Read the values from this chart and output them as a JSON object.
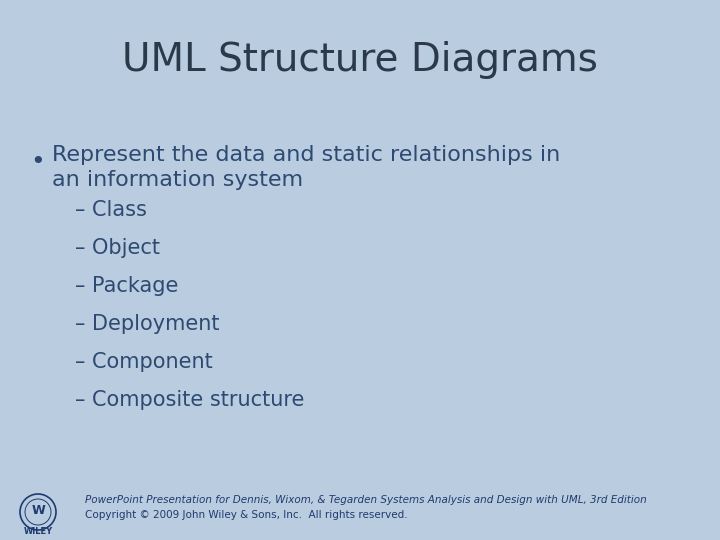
{
  "background_color": "#bacde0",
  "title": "UML Structure Diagrams",
  "title_color": "#2b3a4a",
  "title_fontsize": 28,
  "bullet_text_line1": "Represent the data and static relationships in",
  "bullet_text_line2": "an information system",
  "bullet_color": "#2e4a72",
  "bullet_fontsize": 16,
  "sub_items": [
    "– Class",
    "– Object",
    "– Package",
    "– Deployment",
    "– Component",
    "– Composite structure"
  ],
  "sub_color": "#2e4a72",
  "sub_fontsize": 15,
  "footer_line1": "PowerPoint Presentation for Dennis, Wixom, & Tegarden Systems Analysis and Design with UML, 3rd Edition",
  "footer_line2": "Copyright © 2009 John Wiley & Sons, Inc.  All rights reserved.",
  "footer_color": "#1f3a6e",
  "footer_fontsize": 7.5,
  "wiley_text": "WILEY"
}
